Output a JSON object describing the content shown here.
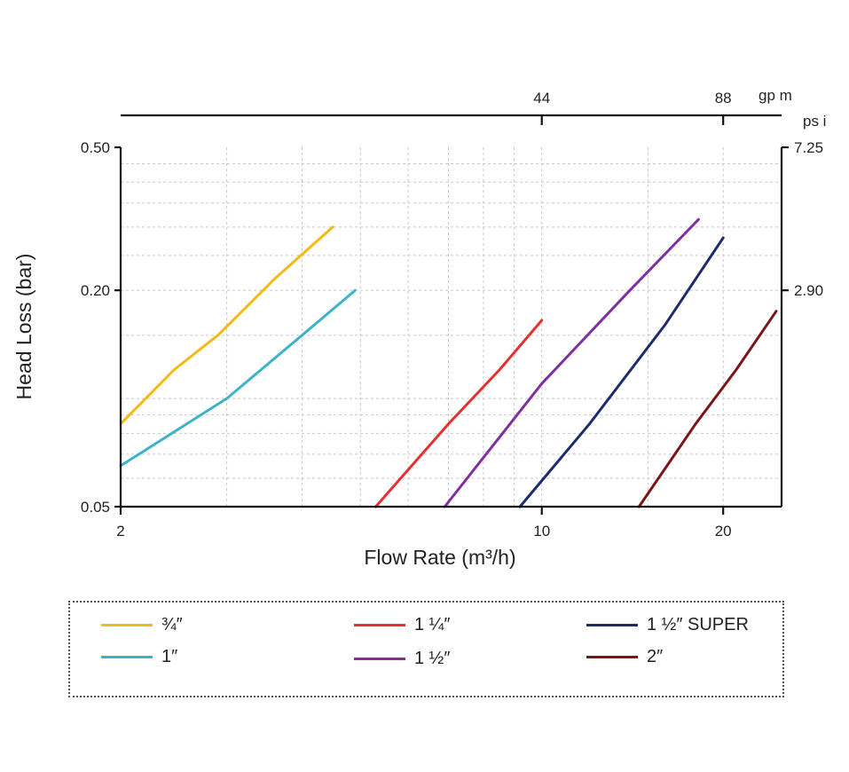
{
  "chart_data": {
    "type": "line",
    "xlabel": "Flow Rate (m³/h)",
    "ylabel": "Head Loss (bar)",
    "x_scale": "log",
    "y_scale": "log",
    "xlim": [
      2,
      25
    ],
    "ylim": [
      0.05,
      0.5
    ],
    "x_ticks": [
      {
        "value": 2,
        "label": "2"
      },
      {
        "value": 10,
        "label": "10"
      },
      {
        "value": 20,
        "label": "20"
      }
    ],
    "y_ticks": [
      {
        "value": 0.05,
        "label": "0.05"
      },
      {
        "value": 0.2,
        "label": "0.20"
      },
      {
        "value": 0.5,
        "label": "0.50"
      }
    ],
    "top_axis": {
      "unit": "gp m",
      "ticks": [
        {
          "at_x": 10,
          "label": "44"
        },
        {
          "at_x": 20,
          "label": "88"
        }
      ]
    },
    "right_axis": {
      "unit": "ps i",
      "ticks": [
        {
          "at_y": 0.2,
          "label": "2.90"
        },
        {
          "at_y": 0.5,
          "label": "7.25"
        }
      ]
    },
    "grid": true,
    "legend_position": "bottom",
    "series": [
      {
        "name": "¾″",
        "color": "#F5B914",
        "x": [
          2.0,
          2.45,
          2.9,
          3.6,
          4.5
        ],
        "y": [
          0.085,
          0.12,
          0.15,
          0.215,
          0.3
        ]
      },
      {
        "name": "1″",
        "color": "#3BB3C8",
        "x": [
          2.0,
          3.0,
          4.0,
          4.9
        ],
        "y": [
          0.065,
          0.1,
          0.15,
          0.2
        ]
      },
      {
        "name": "1 ¼″",
        "color": "#E53030",
        "x": [
          5.3,
          7.0,
          8.5,
          10.0
        ],
        "y": [
          0.05,
          0.085,
          0.12,
          0.165
        ]
      },
      {
        "name": "1 ½″",
        "color": "#7E2FA0",
        "x": [
          6.9,
          10.0,
          14.0,
          18.2
        ],
        "y": [
          0.05,
          0.11,
          0.2,
          0.315
        ]
      },
      {
        "name": "1 ½″ SUPER",
        "color": "#1E2C6B",
        "x": [
          9.2,
          12.0,
          16.0,
          20.0
        ],
        "y": [
          0.05,
          0.085,
          0.16,
          0.28
        ]
      },
      {
        "name": "2″",
        "color": "#7A1616",
        "x": [
          14.5,
          18.0,
          21.0,
          24.5
        ],
        "y": [
          0.05,
          0.085,
          0.12,
          0.175
        ]
      }
    ]
  }
}
